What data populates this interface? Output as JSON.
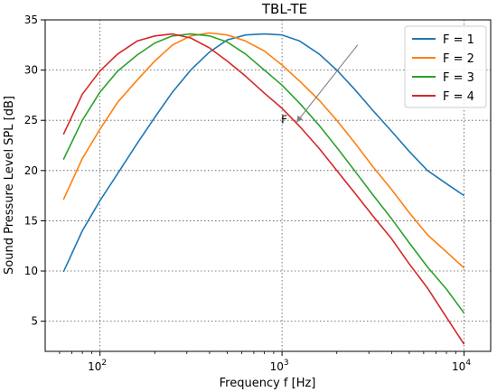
{
  "chart_data": {
    "type": "line",
    "title": "TBL-TE",
    "xlabel": "Frequency f [Hz]",
    "ylabel": "Sound Pressure Level SPL [dB]",
    "xscale": "log",
    "xlim": [
      50,
      14000
    ],
    "ylim": [
      2,
      35
    ],
    "grid": true,
    "grid_style": "dotted",
    "legend_position": "top-right",
    "x_ticks": [
      {
        "value": 100,
        "label": "10",
        "exp": "2"
      },
      {
        "value": 1000,
        "label": "10",
        "exp": "3"
      },
      {
        "value": 10000,
        "label": "10",
        "exp": "4"
      }
    ],
    "y_ticks": [
      5,
      10,
      15,
      20,
      25,
      30,
      35
    ],
    "x": [
      63,
      80,
      100,
      125,
      160,
      200,
      250,
      315,
      400,
      500,
      630,
      800,
      1000,
      1250,
      1600,
      2000,
      2500,
      3150,
      4000,
      5000,
      6300,
      8000,
      10000
    ],
    "series": [
      {
        "name": "F = 1",
        "color": "#1f77b4",
        "values": [
          9.9,
          14.0,
          17.0,
          19.7,
          22.7,
          25.3,
          27.8,
          30.0,
          31.8,
          33.0,
          33.5,
          33.6,
          33.5,
          32.9,
          31.6,
          30.0,
          28.1,
          26.0,
          23.9,
          21.9,
          20.0,
          18.7,
          17.5
        ]
      },
      {
        "name": "F = 2",
        "color": "#ff7f0e",
        "values": [
          17.1,
          21.2,
          24.1,
          26.8,
          29.0,
          30.9,
          32.5,
          33.4,
          33.7,
          33.5,
          32.9,
          31.9,
          30.5,
          28.9,
          27.0,
          25.0,
          22.8,
          20.4,
          18.1,
          15.8,
          13.6,
          11.9,
          10.3
        ]
      },
      {
        "name": "F = 3",
        "color": "#2ca02c",
        "values": [
          21.1,
          25.0,
          27.8,
          29.9,
          31.5,
          32.7,
          33.4,
          33.6,
          33.4,
          32.8,
          31.6,
          30.0,
          28.5,
          26.7,
          24.5,
          22.3,
          20.0,
          17.6,
          15.2,
          12.8,
          10.4,
          8.2,
          5.8
        ]
      },
      {
        "name": "F = 4",
        "color": "#d62728",
        "values": [
          23.6,
          27.6,
          29.9,
          31.6,
          32.9,
          33.4,
          33.6,
          33.2,
          32.2,
          30.9,
          29.4,
          27.7,
          26.2,
          24.4,
          22.2,
          20.0,
          17.8,
          15.5,
          13.2,
          10.7,
          8.3,
          5.4,
          2.7
        ]
      }
    ],
    "annotation": {
      "text": "F",
      "arrow_from": [
        2600,
        32.5
      ],
      "arrow_to": [
        1200,
        24.8
      ],
      "color": "#808080"
    }
  }
}
